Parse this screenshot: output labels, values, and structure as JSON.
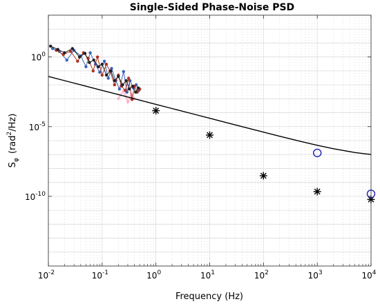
{
  "chart_data": {
    "type": "scatter",
    "title": "Single-Sided Phase-Noise PSD",
    "xlabel": "Frequency (Hz)",
    "ylabel": {
      "main": "S",
      "subscript": "φ",
      "units_prefix": "(rad",
      "units_exp": "2",
      "units_suffix": "/Hz)"
    },
    "x_scale": "log",
    "y_scale": "log",
    "xlim": [
      0.01,
      10000
    ],
    "ylim": [
      1e-15,
      1000
    ],
    "grid": true,
    "minor_grid": true,
    "x_ticks": [
      {
        "base": "10",
        "exp": "-2"
      },
      {
        "base": "10",
        "exp": "-1"
      },
      {
        "base": "10",
        "exp": "0"
      },
      {
        "base": "10",
        "exp": "1"
      },
      {
        "base": "10",
        "exp": "2"
      },
      {
        "base": "10",
        "exp": "3"
      },
      {
        "base": "10",
        "exp": "4"
      }
    ],
    "y_ticks": [
      {
        "value": 1,
        "label": "10",
        "exp": "0"
      },
      {
        "value": 1e-05,
        "label": "10",
        "exp": "-5"
      },
      {
        "value": 1e-10,
        "label": "10",
        "exp": "-10"
      }
    ],
    "colors": {
      "fit": "#000000",
      "star": "#000000",
      "circle": "#1f1fb4",
      "blue": "#3a62b8",
      "red": "#b03020",
      "dark": "#202020",
      "pink": "#ff9fc0"
    },
    "fit_curve": {
      "model": "a/f + c",
      "a": 0.0004,
      "c": 6e-08,
      "x": [
        0.01,
        0.02,
        0.05,
        0.1,
        0.2,
        0.5,
        1,
        2,
        5,
        10,
        20,
        50,
        100,
        200,
        500,
        1000,
        2000,
        5000,
        10000
      ],
      "y": [
        0.04,
        0.02,
        0.008,
        0.004,
        0.002,
        0.0008,
        0.0004,
        0.0002,
        8e-05,
        4e-05,
        2e-05,
        8.06e-06,
        4.06e-06,
        2.06e-06,
        8.6e-07,
        4.6e-07,
        2.6e-07,
        1.4e-07,
        1e-07
      ]
    },
    "series": [
      {
        "marker": "star",
        "x": [
          1,
          10,
          100,
          1000,
          10000
        ],
        "y": [
          0.00014,
          2.5e-06,
          3e-09,
          2.2e-10,
          6e-11
        ]
      },
      {
        "marker": "circle",
        "x": [
          1000,
          10000
        ],
        "y": [
          1.3e-07,
          1.5e-10
        ]
      }
    ],
    "noisy_series": [
      {
        "color_key": "blue",
        "x": [
          0.012,
          0.016,
          0.022,
          0.03,
          0.04,
          0.05,
          0.06,
          0.075,
          0.09,
          0.11,
          0.13,
          0.15,
          0.18,
          0.21,
          0.25,
          0.29,
          0.33,
          0.38,
          0.43,
          0.48
        ],
        "y": [
          4,
          2.5,
          0.6,
          3,
          1.2,
          0.2,
          2,
          0.3,
          0.08,
          0.5,
          0.03,
          0.15,
          0.02,
          0.005,
          0.09,
          0.003,
          0.02,
          0.006,
          0.01,
          0.004
        ]
      },
      {
        "color_key": "red",
        "x": [
          0.014,
          0.019,
          0.026,
          0.035,
          0.045,
          0.055,
          0.068,
          0.082,
          0.1,
          0.12,
          0.14,
          0.17,
          0.2,
          0.23,
          0.27,
          0.31,
          0.36,
          0.4,
          0.45,
          0.5
        ],
        "y": [
          3,
          1.5,
          2.5,
          0.5,
          2,
          0.8,
          0.1,
          1,
          0.05,
          0.3,
          0.1,
          0.01,
          0.05,
          0.008,
          0.004,
          0.03,
          0.0009,
          0.008,
          0.003,
          0.005
        ]
      },
      {
        "color_key": "dark",
        "x": [
          0.011,
          0.015,
          0.02,
          0.028,
          0.038,
          0.048,
          0.058,
          0.07,
          0.085,
          0.1,
          0.12,
          0.145,
          0.17,
          0.2,
          0.24,
          0.28,
          0.32,
          0.37,
          0.42,
          0.47
        ],
        "y": [
          6,
          3.5,
          2,
          4,
          1,
          1.8,
          0.4,
          0.6,
          0.2,
          0.3,
          0.05,
          0.1,
          0.02,
          0.04,
          0.01,
          0.02,
          0.005,
          0.008,
          0.003,
          0.006
        ]
      },
      {
        "color_key": "pink",
        "x": [
          0.2,
          0.25,
          0.3,
          0.35,
          0.4
        ],
        "y": [
          0.001,
          0.004,
          0.0006,
          0.002,
          0.001
        ]
      }
    ]
  }
}
